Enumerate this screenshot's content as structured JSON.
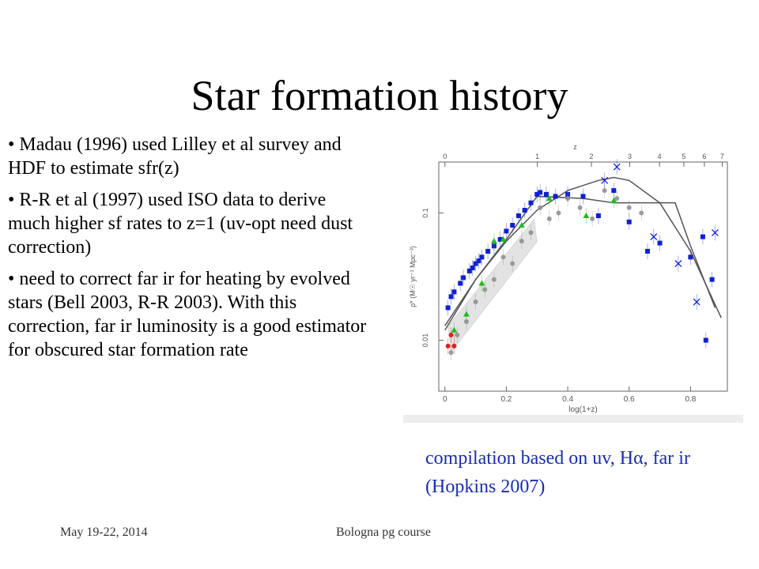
{
  "title": "Star formation history",
  "bullets": [
    "• Madau (1996) used Lilley et al survey and HDF to estimate sfr(z)",
    "• R-R et al (1997) used ISO data to derive much higher sf rates to z=1 (uv-opt need dust correction)",
    "• need to correct far ir for heating by evolved stars (Bell 2003, R-R 2003).  With this correction, far ir luminosity is a good estimator for obscured star formation rate"
  ],
  "caption": "compilation based on uv, Hα, far ir (Hopkins 2007)",
  "footer": {
    "date": "May 19-22, 2014",
    "course": "Bologna pg course"
  },
  "colors": {
    "caption": "#1a2dad",
    "points_blue": "#1020d0",
    "points_gray": "#8c8c8c",
    "points_green": "#22bb22",
    "points_red": "#e02020",
    "fit_line": "#555555"
  },
  "chart_data": {
    "type": "scatter",
    "xlabel": "log(1+z)",
    "ylabel": "ρ̇* (M☉ yr⁻¹ Mpc⁻³)",
    "top_axis_label": "z",
    "xlim": [
      -0.02,
      0.92
    ],
    "ylim_log10": [
      -2.4,
      -0.6
    ],
    "x_ticks": [
      "0",
      "0.2",
      "0.4",
      "0.6",
      "0.8"
    ],
    "top_ticks": [
      "0",
      "1",
      "2",
      "3",
      "4",
      "5",
      "6",
      "7"
    ],
    "y_ticks": [
      "0.01",
      "0.1"
    ],
    "log_y": true,
    "series": [
      {
        "color": "blue",
        "marker": "square",
        "x": [
          0.01,
          0.02,
          0.03,
          0.05,
          0.06,
          0.08,
          0.09,
          0.1,
          0.11,
          0.12,
          0.14,
          0.16,
          0.18,
          0.2,
          0.22,
          0.24,
          0.26,
          0.28,
          0.3,
          0.31,
          0.33,
          0.36,
          0.4,
          0.45,
          0.5,
          0.55,
          0.6,
          0.66,
          0.7,
          0.8,
          0.84,
          0.87,
          0.85
        ],
        "y": [
          0.018,
          0.022,
          0.024,
          0.028,
          0.031,
          0.035,
          0.037,
          0.04,
          0.042,
          0.045,
          0.05,
          0.055,
          0.062,
          0.072,
          0.08,
          0.095,
          0.105,
          0.12,
          0.14,
          0.145,
          0.14,
          0.135,
          0.14,
          0.135,
          0.095,
          0.15,
          0.085,
          0.05,
          0.058,
          0.045,
          0.065,
          0.03,
          0.01
        ]
      },
      {
        "color": "gray",
        "marker": "circle",
        "x": [
          0.02,
          0.04,
          0.07,
          0.1,
          0.13,
          0.16,
          0.19,
          0.22,
          0.25,
          0.28,
          0.31,
          0.34,
          0.37,
          0.4,
          0.44,
          0.48,
          0.52,
          0.56,
          0.6,
          0.64
        ],
        "y": [
          0.008,
          0.011,
          0.014,
          0.02,
          0.025,
          0.03,
          0.045,
          0.04,
          0.06,
          0.07,
          0.11,
          0.09,
          0.1,
          0.13,
          0.11,
          0.09,
          0.15,
          0.13,
          0.11,
          0.1
        ]
      },
      {
        "color": "green",
        "marker": "triangle",
        "x": [
          0.03,
          0.07,
          0.12,
          0.16,
          0.19,
          0.25,
          0.34,
          0.46,
          0.55
        ],
        "y": [
          0.012,
          0.016,
          0.028,
          0.06,
          0.062,
          0.08,
          0.13,
          0.095,
          0.125
        ]
      },
      {
        "color": "red",
        "marker": "circle",
        "x": [
          0.01,
          0.02,
          0.03
        ],
        "y": [
          0.009,
          0.011,
          0.009
        ]
      },
      {
        "color": "blue-cross",
        "marker": "x",
        "x": [
          0.52,
          0.56,
          0.68,
          0.76,
          0.82,
          0.88
        ],
        "y": [
          0.18,
          0.23,
          0.065,
          0.04,
          0.02,
          0.07
        ]
      }
    ],
    "fit_curve": {
      "x": [
        0.0,
        0.1,
        0.2,
        0.3,
        0.4,
        0.5,
        0.55,
        0.6,
        0.7,
        0.8,
        0.9
      ],
      "y": [
        0.013,
        0.03,
        0.06,
        0.105,
        0.15,
        0.18,
        0.19,
        0.18,
        0.12,
        0.05,
        0.015
      ]
    },
    "broken_line": {
      "x": [
        0.0,
        0.1,
        0.2,
        0.3,
        0.45,
        0.55,
        0.75,
        0.8,
        0.88
      ],
      "y": [
        0.012,
        0.03,
        0.062,
        0.135,
        0.13,
        0.12,
        0.12,
        0.055,
        0.018
      ]
    }
  }
}
